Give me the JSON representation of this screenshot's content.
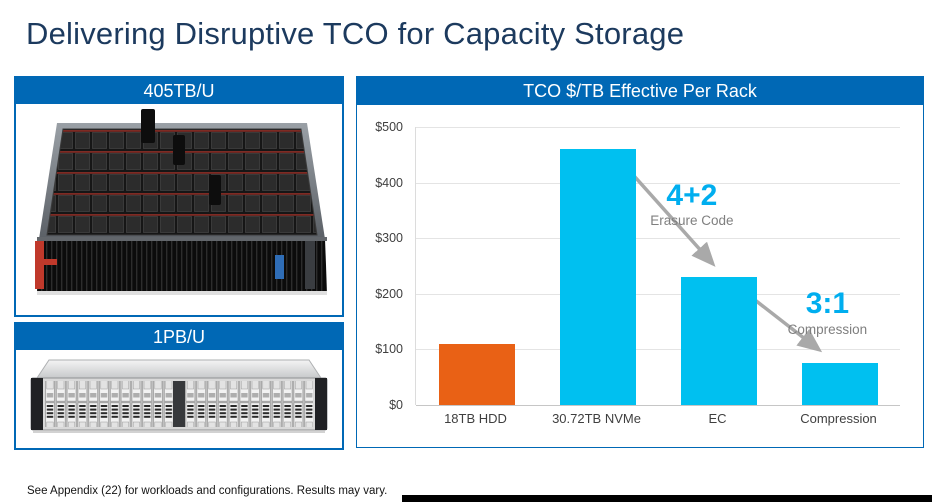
{
  "title": "Delivering Disruptive TCO for Capacity Storage",
  "left_panels": [
    {
      "label": "405TB/U"
    },
    {
      "label": "1PB/U"
    }
  ],
  "chart_data": {
    "type": "bar",
    "title": "TCO $/TB Effective Per Rack",
    "categories": [
      "18TB HDD",
      "30.72TB NVMe",
      "EC",
      "Compression"
    ],
    "values": [
      110,
      460,
      230,
      75
    ],
    "bar_colors": [
      "#e96115",
      "#00c0f0",
      "#00c0f0",
      "#00c0f0"
    ],
    "ylim": [
      0,
      500
    ],
    "ytick_labels": [
      "$500",
      "$400",
      "$300",
      "$200",
      "$100",
      "$0"
    ],
    "grid": "horizontal",
    "legend": "none",
    "annotations": [
      {
        "value": "4+2",
        "label": "Erasure Code"
      },
      {
        "value": "3:1",
        "label": "Compression"
      }
    ]
  },
  "footnote": "See Appendix (22) for workloads and configurations. Results may vary.",
  "colors": {
    "header_blue": "#0068b5",
    "title_navy": "#1c3a5e",
    "bar_cyan": "#00c0f0",
    "bar_orange": "#e96115",
    "annotation_cyan": "#00aeef",
    "annotation_gray": "#7f7f7f",
    "arrow_gray": "#a9a9a9"
  }
}
